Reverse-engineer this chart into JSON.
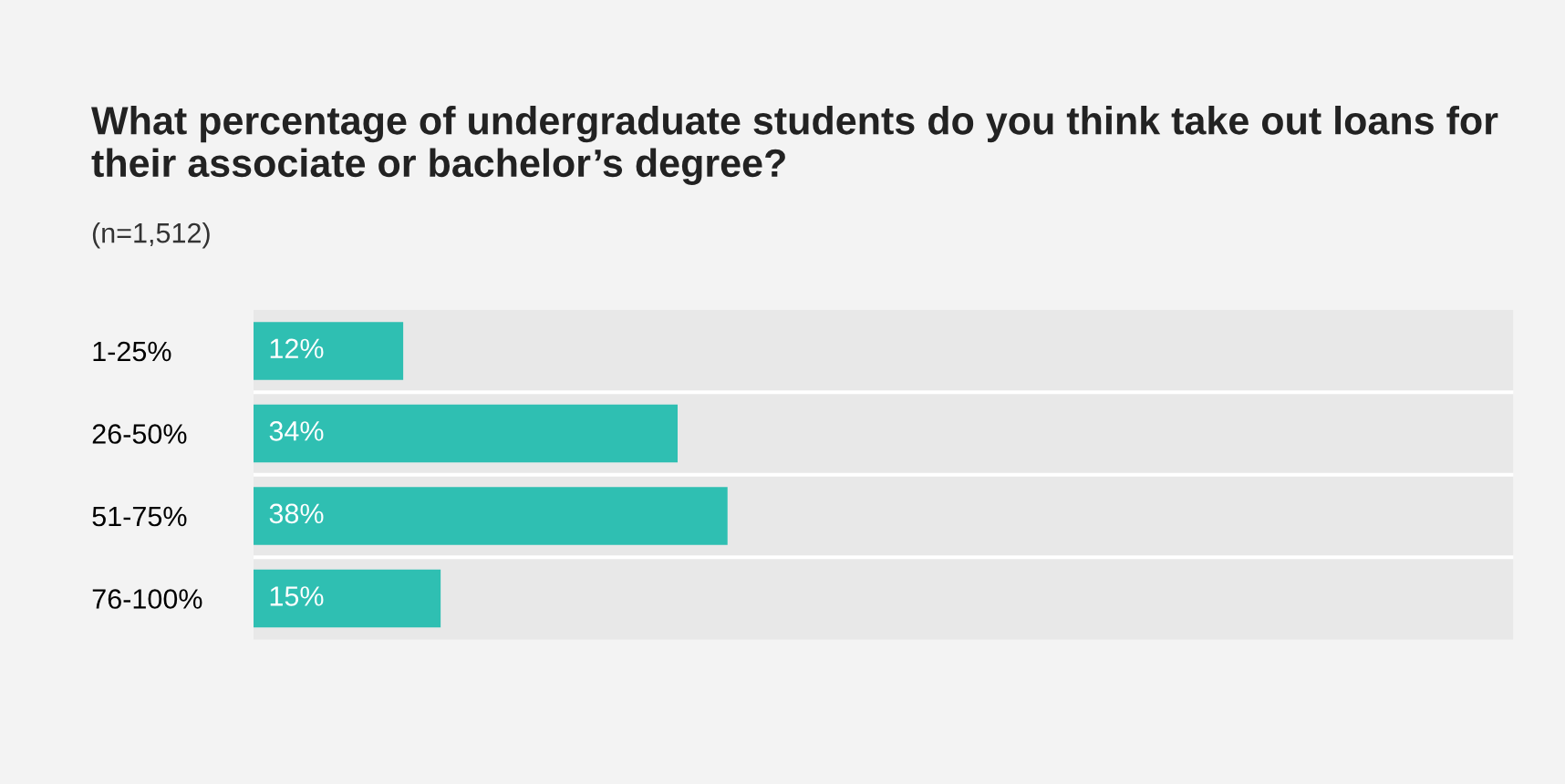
{
  "chart_data": {
    "type": "bar",
    "orientation": "horizontal",
    "title": "What percentage of undergraduate students do you think take out loans for their associate or bachelor’s degree?",
    "subtitle": "(n=1,512)",
    "categories": [
      "1-25%",
      "26-50%",
      "51-75%",
      "76-100%"
    ],
    "values": [
      12,
      34,
      38,
      15
    ],
    "color": "#2fbfb2",
    "value_labels": [
      "12%",
      "34%",
      "38%",
      "15%"
    ],
    "xlim": [
      0,
      101
    ],
    "tick_labels": "y",
    "bands": [
      {
        "axis": "x",
        "from": 0,
        "to": 101,
        "color": "#e8e8e8"
      }
    ],
    "grid": false,
    "legend": false
  }
}
